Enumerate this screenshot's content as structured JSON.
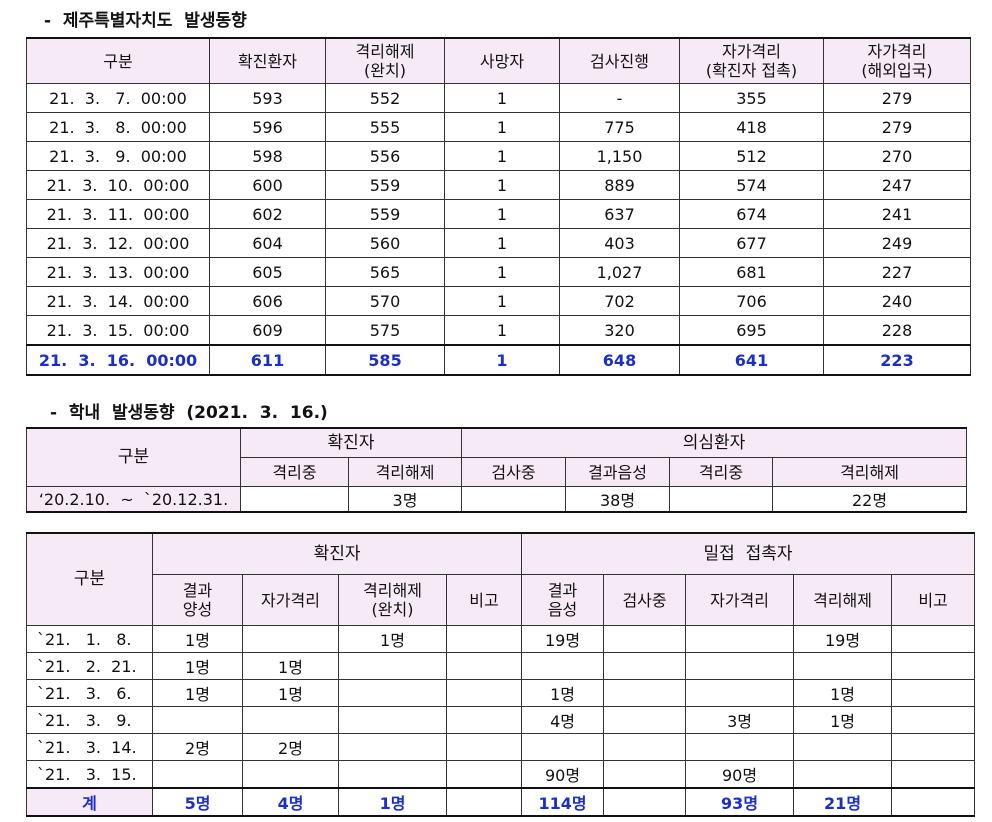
{
  "section1": {
    "heading": "-  제주특별자치도  발생동향",
    "headers": [
      "구분",
      "확진환자",
      "격리해제\n(완치)",
      "사망자",
      "검사진행",
      "자가격리\n(확진자 접촉)",
      "자가격리\n(해외입국)"
    ],
    "rows": [
      [
        "21.  3.   7.  00:00",
        "593",
        "552",
        "1",
        "-",
        "355",
        "279"
      ],
      [
        "21.  3.   8.  00:00",
        "596",
        "555",
        "1",
        "775",
        "418",
        "279"
      ],
      [
        "21.  3.   9.  00:00",
        "598",
        "556",
        "1",
        "1,150",
        "512",
        "270"
      ],
      [
        "21.  3.  10.  00:00",
        "600",
        "559",
        "1",
        "889",
        "574",
        "247"
      ],
      [
        "21.  3.  11.  00:00",
        "602",
        "559",
        "1",
        "637",
        "674",
        "241"
      ],
      [
        "21.  3.  12.  00:00",
        "604",
        "560",
        "1",
        "403",
        "677",
        "249"
      ],
      [
        "21.  3.  13.  00:00",
        "605",
        "565",
        "1",
        "1,027",
        "681",
        "227"
      ],
      [
        "21.  3.  14.  00:00",
        "606",
        "570",
        "1",
        "702",
        "706",
        "240"
      ],
      [
        "21.  3.  15.  00:00",
        "609",
        "575",
        "1",
        "320",
        "695",
        "228"
      ]
    ],
    "total": [
      "21.  3.  16.  00:00",
      "611",
      "585",
      "1",
      "648",
      "641",
      "223"
    ]
  },
  "section2": {
    "heading": "-  학내  발생동향  (2021.  3.  16.)",
    "col_label": "구분",
    "group_confirmed": "확진자",
    "group_suspected": "의심환자",
    "sub": [
      "격리중",
      "격리해제",
      "검사중",
      "결과음성",
      "격리중",
      "격리해제"
    ],
    "row": [
      "‘20.2.10.  ~  `20.12.31.",
      "",
      "3명",
      "",
      "38명",
      "",
      "22명"
    ]
  },
  "section3": {
    "col_label": "구분",
    "group_confirmed": "확진자",
    "group_contacts": "밀접  접촉자",
    "sub": [
      "결과\n양성",
      "자가격리",
      "격리해제\n(완치)",
      "비고",
      "결과\n음성",
      "검사중",
      "자가격리",
      "격리해제",
      "비고"
    ],
    "rows": [
      [
        "`21.   1.   8.",
        "1명",
        "",
        "1명",
        "",
        "19명",
        "",
        "",
        "19명",
        ""
      ],
      [
        "`21.   2.  21.",
        "1명",
        "1명",
        "",
        "",
        "",
        "",
        "",
        "",
        ""
      ],
      [
        "`21.   3.   6.",
        "1명",
        "1명",
        "",
        "",
        "1명",
        "",
        "",
        "1명",
        ""
      ],
      [
        "`21.   3.   9.",
        "",
        "",
        "",
        "",
        "4명",
        "",
        "3명",
        "1명",
        ""
      ],
      [
        "`21.   3.  14.",
        "2명",
        "2명",
        "",
        "",
        "",
        "",
        "",
        "",
        ""
      ],
      [
        "`21.   3.  15.",
        "",
        "",
        "",
        "",
        "90명",
        "",
        "90명",
        "",
        ""
      ]
    ],
    "total": [
      "계",
      "5명",
      "4명",
      "1명",
      "",
      "114명",
      "",
      "93명",
      "21명",
      ""
    ]
  }
}
